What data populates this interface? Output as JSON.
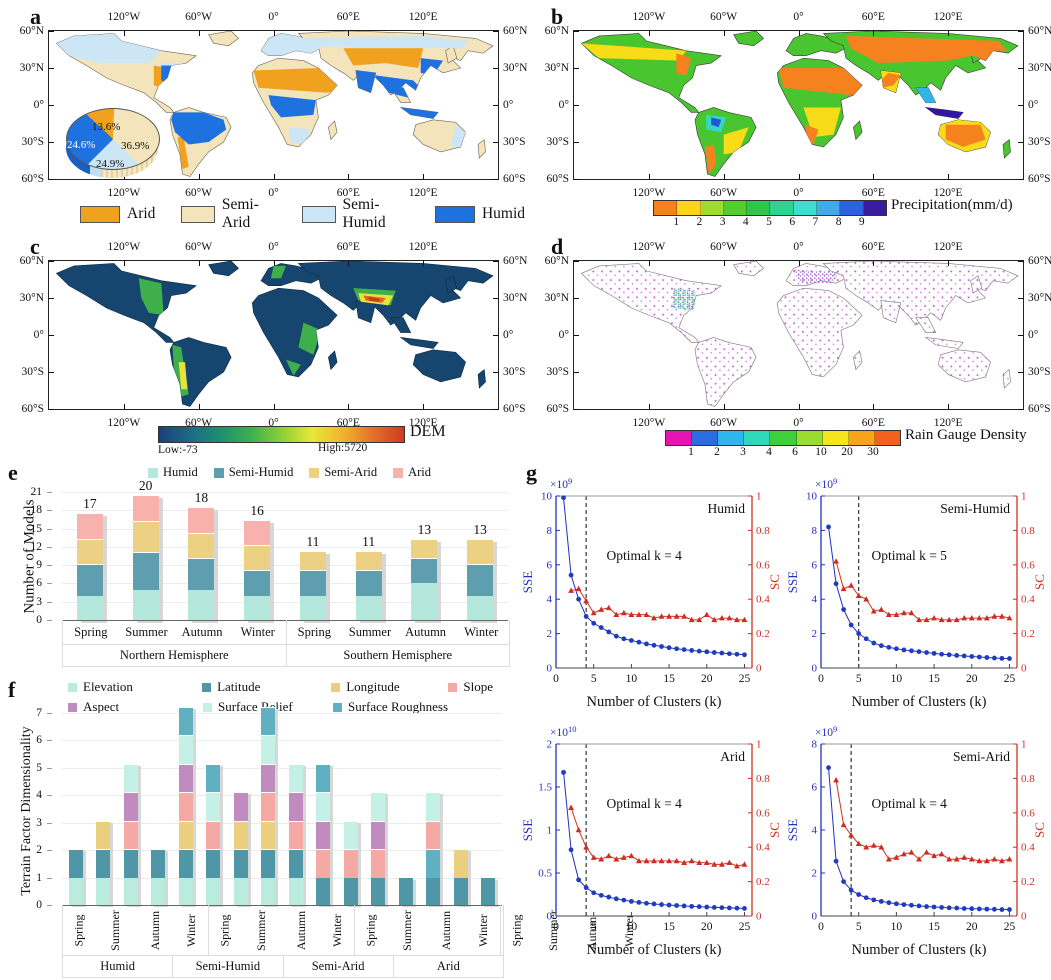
{
  "panels": {
    "a": {
      "letter": "a",
      "legend": [
        {
          "label": "Arid",
          "color": "#F0A11D"
        },
        {
          "label": "Semi-Arid",
          "color": "#F4E4BC"
        },
        {
          "label": "Semi-Humid",
          "color": "#CDE6F6"
        },
        {
          "label": "Humid",
          "color": "#1E72DF"
        }
      ],
      "pie": {
        "slices": [
          {
            "label": "Arid",
            "pct": 13.6,
            "text": "13.6%",
            "color": "#F0A11D"
          },
          {
            "label": "Semi-Arid",
            "pct": 36.9,
            "text": "36.9%",
            "color": "#F4E4BC"
          },
          {
            "label": "Semi-Humid",
            "pct": 24.9,
            "text": "24.9%",
            "color": "#CDE6F6"
          },
          {
            "label": "Humid",
            "pct": 24.6,
            "text": "24.6%",
            "color": "#1E72DF"
          }
        ]
      }
    },
    "b": {
      "letter": "b",
      "colorbar": {
        "title": "Precipitation(mm/d)",
        "colors": [
          "#F5821F",
          "#FFD51C",
          "#9FDD2E",
          "#52CD2F",
          "#2EC74B",
          "#2FD290",
          "#3EDCD1",
          "#41A9E8",
          "#2B62DD",
          "#3A1B9E"
        ],
        "ticks": [
          "1",
          "2",
          "3",
          "4",
          "5",
          "6",
          "7",
          "8",
          "9"
        ]
      }
    },
    "c": {
      "letter": "c",
      "colorbar": {
        "title": "DEM",
        "low": "Low:-73",
        "high": "High:5720",
        "gradient": [
          "#1C3E7E",
          "#1B6A85",
          "#1F8F6F",
          "#3BB04D",
          "#8CCF3A",
          "#E8E83A",
          "#F2B42E",
          "#E2702A",
          "#CF3B22"
        ]
      }
    },
    "d": {
      "letter": "d",
      "colorbar": {
        "title": "Rain Gauge Density",
        "colors": [
          "#E515B3",
          "#2B6CE0",
          "#2EB6EA",
          "#2ED9B9",
          "#3ECF3A",
          "#9ADD2E",
          "#F5E51C",
          "#F7A41C",
          "#F2611D"
        ],
        "ticks": [
          "1",
          "2",
          "3",
          "4",
          "6",
          "10",
          "20",
          "30"
        ]
      }
    },
    "e": {
      "letter": "e"
    },
    "f": {
      "letter": "f"
    },
    "g": {
      "letter": "g"
    }
  },
  "maps": {
    "xticks": [
      {
        "label": "120°W",
        "pos": 16.67
      },
      {
        "label": "60°W",
        "pos": 33.33
      },
      {
        "label": "0°",
        "pos": 50
      },
      {
        "label": "60°E",
        "pos": 66.67
      },
      {
        "label": "120°E",
        "pos": 83.33
      }
    ],
    "yticks": [
      {
        "label": "60°N",
        "pos": 0
      },
      {
        "label": "30°N",
        "pos": 25
      },
      {
        "label": "0°",
        "pos": 50
      },
      {
        "label": "30°S",
        "pos": 75
      },
      {
        "label": "60°S",
        "pos": 100
      }
    ]
  },
  "chart_data": [
    {
      "id": "e",
      "type": "bar",
      "stacked": true,
      "ylabel": "Number of Models",
      "ylim": [
        0,
        21
      ],
      "yticks": [
        0,
        3,
        6,
        9,
        12,
        15,
        18,
        21
      ],
      "group_labels": [
        "Northern Hemisphere",
        "Southern Hemisphere"
      ],
      "categories": [
        "Spring",
        "Summer",
        "Autumn",
        "Winter",
        "Spring",
        "Summer",
        "Autumn",
        "Winter"
      ],
      "totals": [
        17,
        20,
        18,
        16,
        11,
        11,
        13,
        13
      ],
      "series": [
        {
          "name": "Humid",
          "color": "#B5E8DC",
          "values": [
            4,
            5,
            5,
            4,
            4,
            4,
            6,
            4
          ]
        },
        {
          "name": "Semi-Humid",
          "color": "#5F9EAE",
          "values": [
            5,
            6,
            5,
            4,
            4,
            4,
            4,
            5
          ]
        },
        {
          "name": "Semi-Arid",
          "color": "#ECD084",
          "values": [
            4,
            5,
            4,
            4,
            3,
            3,
            3,
            4
          ]
        },
        {
          "name": "Arid",
          "color": "#F7B2AE",
          "values": [
            4,
            4,
            4,
            4,
            0,
            0,
            0,
            0
          ]
        }
      ]
    },
    {
      "id": "f",
      "type": "bar",
      "stacked": true,
      "ylabel": "Terrain Factor Dimensionality",
      "ylim": [
        0,
        7
      ],
      "yticks": [
        0,
        1,
        2,
        3,
        4,
        5,
        6,
        7
      ],
      "group_labels": [
        "Humid",
        "Semi-Humid",
        "Semi-Arid",
        "Arid"
      ],
      "categories": [
        "Spring",
        "Summer",
        "Autumn",
        "Winter",
        "Spring",
        "Summer",
        "Autumn",
        "Winter",
        "Spring",
        "Summer",
        "Autumn",
        "Winter",
        "Spring",
        "Summer",
        "Autumn",
        "Winter"
      ],
      "legend": [
        {
          "name": "Elevation",
          "color": "#B9ECDC"
        },
        {
          "name": "Latitude",
          "color": "#4F96A6"
        },
        {
          "name": "Longitude",
          "color": "#E9CF7E"
        },
        {
          "name": "Slope",
          "color": "#F4A9A4"
        },
        {
          "name": "Aspect",
          "color": "#C08CC0"
        },
        {
          "name": "Surface Relief",
          "color": "#C4F0E6"
        },
        {
          "name": "Surface Roughness",
          "color": "#5FB0C1"
        }
      ],
      "bars": [
        [
          "Elevation",
          "Latitude"
        ],
        [
          "Elevation",
          "Latitude",
          "Longitude"
        ],
        [
          "Elevation",
          "Latitude",
          "Slope",
          "Aspect",
          "Surface Relief"
        ],
        [
          "Elevation",
          "Latitude"
        ],
        [
          "Elevation",
          "Latitude",
          "Longitude",
          "Slope",
          "Aspect",
          "Surface Relief",
          "Surface Roughness"
        ],
        [
          "Elevation",
          "Latitude",
          "Slope",
          "Surface Relief",
          "Surface Roughness"
        ],
        [
          "Elevation",
          "Latitude",
          "Longitude",
          "Aspect"
        ],
        [
          "Elevation",
          "Latitude",
          "Longitude",
          "Slope",
          "Aspect",
          "Surface Relief",
          "Surface Roughness"
        ],
        [
          "Elevation",
          "Latitude",
          "Slope",
          "Aspect",
          "Surface Relief"
        ],
        [
          "Latitude",
          "Slope",
          "Aspect",
          "Surface Relief",
          "Surface Roughness"
        ],
        [
          "Latitude",
          "Slope",
          "Surface Relief"
        ],
        [
          "Latitude",
          "Slope",
          "Aspect",
          "Surface Relief"
        ],
        [
          "Latitude"
        ],
        [
          "Latitude",
          "Surface Roughness",
          "Slope",
          "Surface Relief"
        ],
        [
          "Latitude",
          "Longitude"
        ],
        [
          "Latitude"
        ]
      ]
    },
    {
      "id": "g-humid",
      "type": "line",
      "title": "Humid",
      "annotation": "Optimal k = 4",
      "optimal_k": 4,
      "xlabel": "Number of Clusters (k)",
      "xticks": [
        0,
        5,
        10,
        15,
        20,
        25
      ],
      "xlim": [
        0,
        26
      ],
      "scale_base": "×10",
      "scale_exp": "9",
      "left_axis": {
        "label": "SSE",
        "color": "#2330C0",
        "ymax": 10,
        "yticks": [
          "0",
          "2",
          "4",
          "6",
          "8",
          "10"
        ]
      },
      "right_axis": {
        "label": "SC",
        "color": "#D03221",
        "ymax": 1,
        "yticks": [
          "0",
          "0.2",
          "0.4",
          "0.6",
          "0.8",
          "1"
        ]
      },
      "sse": [
        9.9,
        5.4,
        4.0,
        3.0,
        2.6,
        2.35,
        2.1,
        1.85,
        1.7,
        1.6,
        1.5,
        1.4,
        1.32,
        1.25,
        1.18,
        1.12,
        1.07,
        1.02,
        0.98,
        0.94,
        0.9,
        0.87,
        0.83,
        0.8,
        0.77
      ],
      "sc": [
        0.45,
        0.46,
        0.39,
        0.32,
        0.34,
        0.35,
        0.31,
        0.32,
        0.31,
        0.31,
        0.31,
        0.29,
        0.3,
        0.3,
        0.3,
        0.3,
        0.28,
        0.28,
        0.31,
        0.28,
        0.29,
        0.29,
        0.28,
        0.28
      ]
    },
    {
      "id": "g-semi-humid",
      "type": "line",
      "title": "Semi-Humid",
      "annotation": "Optimal k = 5",
      "optimal_k": 5,
      "xlabel": "Number of Clusters (k)",
      "xticks": [
        0,
        5,
        10,
        15,
        20,
        25
      ],
      "xlim": [
        0,
        26
      ],
      "scale_base": "×10",
      "scale_exp": "9",
      "left_axis": {
        "label": "SSE",
        "color": "#2330C0",
        "ymax": 10,
        "yticks": [
          "0",
          "2",
          "4",
          "6",
          "8",
          "10"
        ]
      },
      "right_axis": {
        "label": "SC",
        "color": "#D03221",
        "ymax": 1,
        "yticks": [
          "0",
          "0.2",
          "0.4",
          "0.6",
          "0.8",
          "1"
        ]
      },
      "sse": [
        8.2,
        4.9,
        3.4,
        2.5,
        2.0,
        1.7,
        1.45,
        1.3,
        1.2,
        1.12,
        1.05,
        1.0,
        0.95,
        0.9,
        0.85,
        0.8,
        0.77,
        0.73,
        0.7,
        0.67,
        0.64,
        0.61,
        0.58,
        0.56,
        0.55
      ],
      "sc": [
        0.62,
        0.46,
        0.48,
        0.42,
        0.4,
        0.33,
        0.34,
        0.31,
        0.31,
        0.32,
        0.32,
        0.28,
        0.28,
        0.29,
        0.28,
        0.28,
        0.28,
        0.29,
        0.29,
        0.29,
        0.29,
        0.3,
        0.3,
        0.29
      ]
    },
    {
      "id": "g-arid",
      "type": "line",
      "title": "Arid",
      "annotation": "Optimal k = 4",
      "optimal_k": 4,
      "xlabel": "Number of Clusters (k)",
      "xticks": [
        0,
        5,
        10,
        15,
        20,
        25
      ],
      "xlim": [
        0,
        26
      ],
      "scale_base": "×10",
      "scale_exp": "10",
      "left_axis": {
        "label": "SSE",
        "color": "#2330C0",
        "ymax": 2,
        "yticks": [
          "0",
          "0.5",
          "1",
          "1.5",
          "2"
        ]
      },
      "right_axis": {
        "label": "SC",
        "color": "#D03221",
        "ymax": 1,
        "yticks": [
          "0",
          "0.2",
          "0.4",
          "0.6",
          "0.8",
          "1"
        ]
      },
      "sse": [
        1.67,
        0.77,
        0.42,
        0.33,
        0.27,
        0.24,
        0.22,
        0.2,
        0.185,
        0.17,
        0.158,
        0.148,
        0.14,
        0.133,
        0.127,
        0.122,
        0.117,
        0.112,
        0.108,
        0.104,
        0.1,
        0.097,
        0.094,
        0.091,
        0.088
      ],
      "sc": [
        0.63,
        0.5,
        0.4,
        0.34,
        0.33,
        0.35,
        0.33,
        0.34,
        0.35,
        0.32,
        0.32,
        0.32,
        0.32,
        0.32,
        0.32,
        0.31,
        0.32,
        0.31,
        0.31,
        0.3,
        0.3,
        0.31,
        0.29,
        0.3
      ]
    },
    {
      "id": "g-semi-arid",
      "type": "line",
      "title": "Semi-Arid",
      "annotation": "Optimal k = 4",
      "optimal_k": 4,
      "xlabel": "Number of Clusters (k)",
      "xticks": [
        0,
        5,
        10,
        15,
        20,
        25
      ],
      "xlim": [
        0,
        26
      ],
      "scale_base": "×10",
      "scale_exp": "9",
      "left_axis": {
        "label": "SSE",
        "color": "#2330C0",
        "ymax": 8,
        "yticks": [
          "0",
          "2",
          "4",
          "6",
          "8"
        ]
      },
      "right_axis": {
        "label": "SC",
        "color": "#D03221",
        "ymax": 1,
        "yticks": [
          "0",
          "0.2",
          "0.4",
          "0.6",
          "0.8",
          "1"
        ]
      },
      "sse": [
        6.9,
        2.55,
        1.6,
        1.2,
        1.0,
        0.85,
        0.75,
        0.68,
        0.62,
        0.57,
        0.53,
        0.5,
        0.47,
        0.44,
        0.42,
        0.4,
        0.38,
        0.37,
        0.35,
        0.34,
        0.33,
        0.32,
        0.31,
        0.3,
        0.3
      ],
      "sc": [
        0.79,
        0.53,
        0.47,
        0.42,
        0.4,
        0.41,
        0.4,
        0.33,
        0.34,
        0.36,
        0.37,
        0.33,
        0.37,
        0.35,
        0.36,
        0.33,
        0.33,
        0.34,
        0.33,
        0.32,
        0.32,
        0.33,
        0.32,
        0.33
      ]
    }
  ]
}
